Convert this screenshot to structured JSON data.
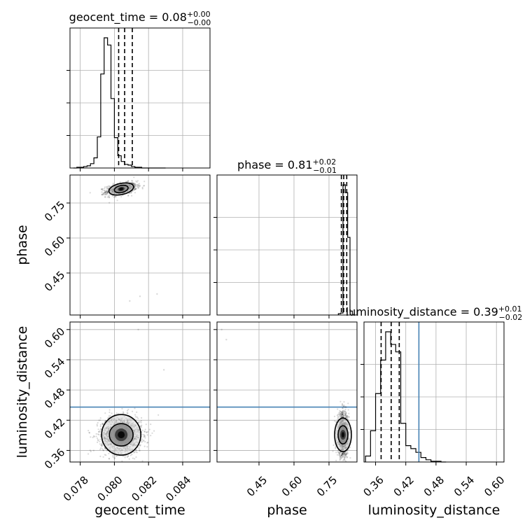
{
  "chart_data": {
    "type": "corner",
    "parameters": [
      "geocent_time",
      "phase",
      "luminosity_distance"
    ],
    "axis_labels": {
      "geocent_time": "geocent_time",
      "phase": "phase",
      "luminosity_distance": "luminosity_distance"
    },
    "ranges": {
      "geocent_time": [
        0.0774,
        0.0856
      ],
      "phase": [
        0.27,
        0.87
      ],
      "luminosity_distance": [
        0.337,
        0.615
      ]
    },
    "ticks": {
      "geocent_time": [
        "0.078",
        "0.080",
        "0.082",
        "0.084"
      ],
      "phase": [
        "0.45",
        "0.60",
        "0.75"
      ],
      "luminosity_distance": [
        "0.36",
        "0.42",
        "0.48",
        "0.54",
        "0.60"
      ]
    },
    "titles": {
      "geocent_time": {
        "name": "geocent_time",
        "value": "0.08",
        "plus": "+0.00",
        "minus": "−0.00"
      },
      "phase": {
        "name": "phase",
        "value": "0.81",
        "plus": "+0.02",
        "minus": "−0.01"
      },
      "luminosity_distance": {
        "name": "luminosity_distance",
        "value": "0.39",
        "plus": "+0.01",
        "minus": "−0.02"
      }
    },
    "quantiles": {
      "geocent_time": [
        0.08025,
        0.0806,
        0.08105
      ],
      "phase": [
        0.803,
        0.813,
        0.826
      ],
      "luminosity_distance": [
        0.371,
        0.391,
        0.407
      ]
    },
    "truths": {
      "luminosity_distance": 0.446
    },
    "histograms": {
      "geocent_time": {
        "edges": [
          0.0776,
          0.0778,
          0.078,
          0.0782,
          0.0784,
          0.0786,
          0.0788,
          0.079,
          0.0792,
          0.0794,
          0.0796,
          0.0798,
          0.08,
          0.0802,
          0.0804,
          0.0806,
          0.0808,
          0.081,
          0.0812,
          0.0814,
          0.0816,
          0.0818,
          0.082,
          0.0822,
          0.0824,
          0.0826,
          0.0828,
          0.083
        ],
        "counts": [
          0,
          1,
          1,
          2,
          3,
          6,
          14,
          43,
          130,
          180,
          170,
          96,
          42,
          17,
          9,
          5,
          4,
          2,
          1,
          1,
          0,
          0,
          0,
          0,
          0,
          0,
          0
        ]
      },
      "phase": {
        "edges": [
          0.79,
          0.8,
          0.81,
          0.82,
          0.83,
          0.84,
          0.85
        ],
        "counts": [
          2,
          3,
          198,
          186,
          118,
          6
        ]
      },
      "luminosity_distance": {
        "edges": [
          0.34,
          0.35,
          0.36,
          0.37,
          0.38,
          0.39,
          0.4,
          0.41,
          0.42,
          0.43,
          0.44,
          0.45,
          0.46,
          0.47,
          0.48,
          0.49,
          0.5
        ],
        "counts": [
          8,
          42,
          92,
          137,
          175,
          158,
          148,
          52,
          22,
          18,
          13,
          6,
          3,
          1,
          1,
          0
        ]
      }
    },
    "centers": {
      "geocent_time": 0.0804,
      "phase": 0.81,
      "luminosity_distance": 0.391
    }
  }
}
